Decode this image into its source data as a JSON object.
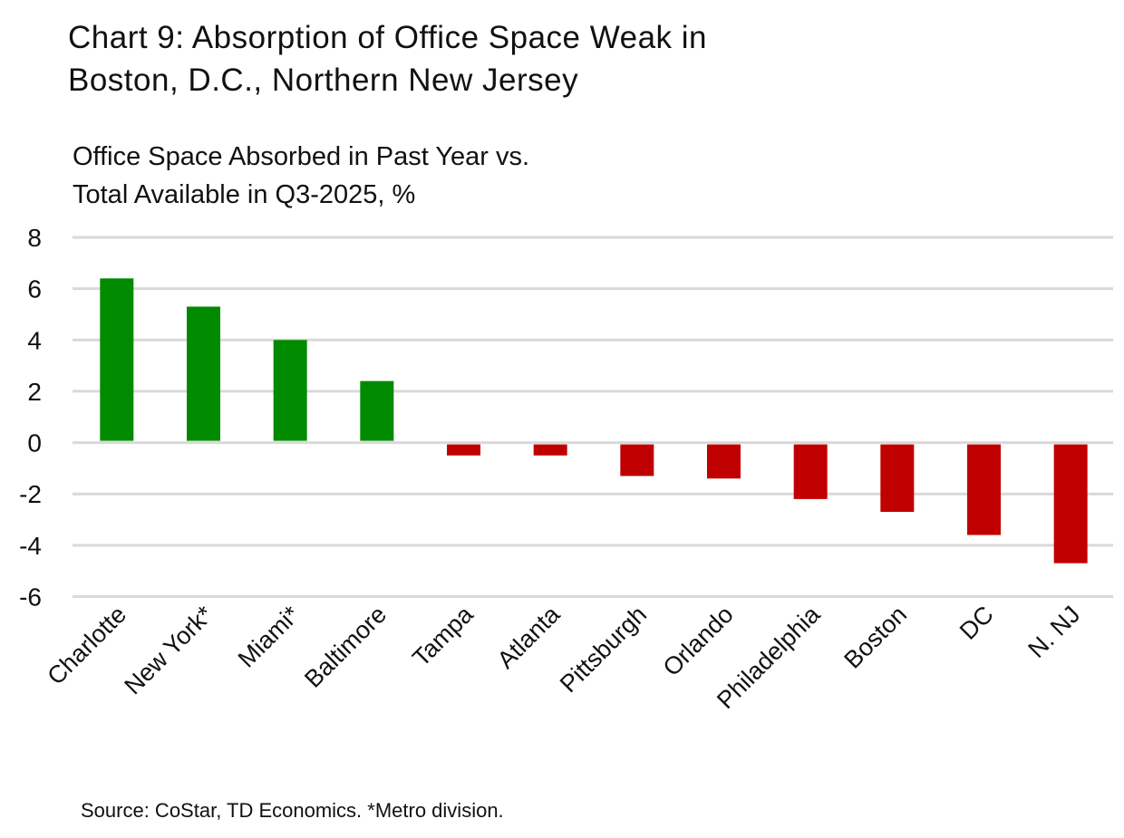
{
  "chart_data": {
    "type": "bar",
    "title": "Chart 9: Absorption of Office Space Weak in Boston, D.C., Northern New Jersey",
    "title_lines": [
      "Chart 9: Absorption of Office Space Weak in",
      "Boston, D.C., Northern New Jersey"
    ],
    "ylabel_lines": [
      "Office Space Absorbed in Past Year vs.",
      "Total Available in Q3-2025, %"
    ],
    "xlabel": "",
    "categories": [
      "Charlotte",
      "New York*",
      "Miami*",
      "Baltimore",
      "Tampa",
      "Atlanta",
      "Pittsburgh",
      "Orlando",
      "Philadelphia",
      "Boston",
      "DC",
      "N. NJ"
    ],
    "values": [
      6.4,
      5.3,
      4.0,
      2.4,
      -0.5,
      -0.5,
      -1.3,
      -1.4,
      -2.2,
      -2.7,
      -3.6,
      -4.7
    ],
    "ylim": [
      -6,
      8
    ],
    "yticks": [
      "8",
      "6",
      "4",
      "2",
      "0",
      "-2",
      "-4",
      "-6"
    ],
    "grid": true,
    "colors": {
      "positive": "#008a00",
      "negative": "#c00000",
      "grid": "#d9d9d9"
    },
    "source": "Source: CoStar, TD Economics. *Metro division."
  }
}
